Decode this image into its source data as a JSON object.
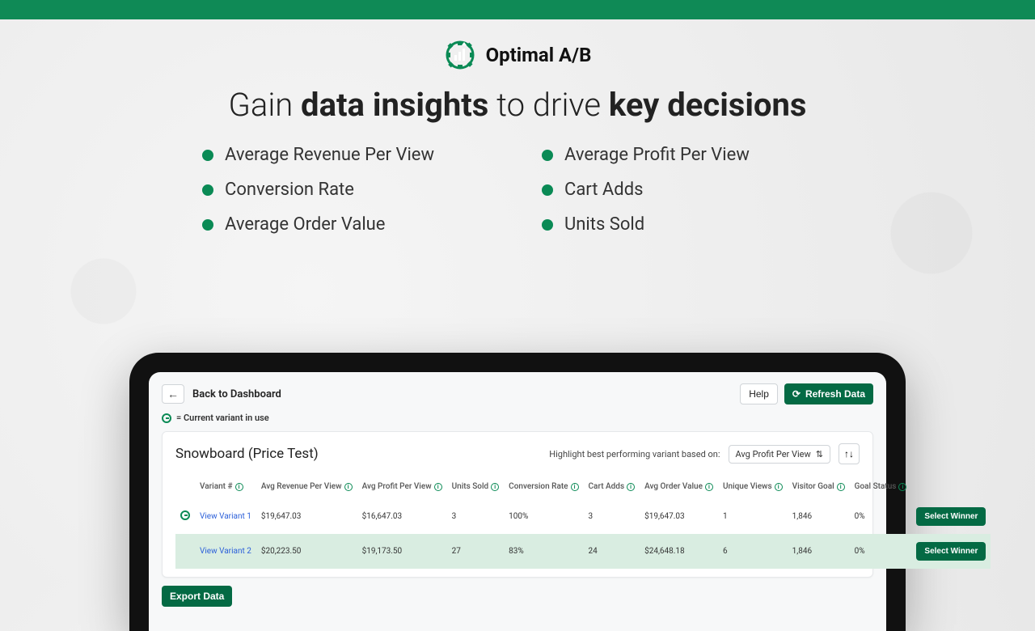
{
  "colors": {
    "brand_green": "#0a8a55",
    "dark_green": "#046a44",
    "top_bar": "#0f8a56",
    "highlight_row": "#d9ede1",
    "link_blue": "#2b5fd9",
    "bg": "#f0f0f0"
  },
  "header": {
    "brand_name": "Optimal A/B",
    "headline_pre": "Gain ",
    "headline_b1": "data insights",
    "headline_mid": " to drive ",
    "headline_b2": "key decisions"
  },
  "bullets": {
    "left": [
      "Average Revenue Per View",
      "Conversion Rate",
      "Average Order Value"
    ],
    "right": [
      "Average Profit Per View",
      "Cart Adds",
      "Units Sold"
    ]
  },
  "dashboard": {
    "back_label": "Back to Dashboard",
    "help_label": "Help",
    "refresh_label": "Refresh Data",
    "legend_text": "= Current variant in use",
    "card_title": "Snowboard (Price Test)",
    "highlight_label": "Highlight best performing variant based on:",
    "highlight_metric": "Avg Profit Per View",
    "export_label": "Export Data",
    "select_winner_label": "Select Winner",
    "columns": [
      "Variant #",
      "Avg Revenue Per View",
      "Avg Profit Per View",
      "Units Sold",
      "Conversion Rate",
      "Cart Adds",
      "Avg Order Value",
      "Unique Views",
      "Visitor Goal",
      "Goal Status"
    ],
    "rows": [
      {
        "current": true,
        "highlight": false,
        "variant": "View Variant 1",
        "avg_revenue": "$19,647.03",
        "avg_profit": "$16,647.03",
        "units_sold": "3",
        "conversion": "100%",
        "cart_adds": "3",
        "avg_order": "$19,647.03",
        "unique_views": "1",
        "visitor_goal": "1,846",
        "goal_status": "0%"
      },
      {
        "current": false,
        "highlight": true,
        "variant": "View Variant 2",
        "avg_revenue": "$20,223.50",
        "avg_profit": "$19,173.50",
        "units_sold": "27",
        "conversion": "83%",
        "cart_adds": "24",
        "avg_order": "$24,648.18",
        "unique_views": "6",
        "visitor_goal": "1,846",
        "goal_status": "0%"
      }
    ]
  }
}
